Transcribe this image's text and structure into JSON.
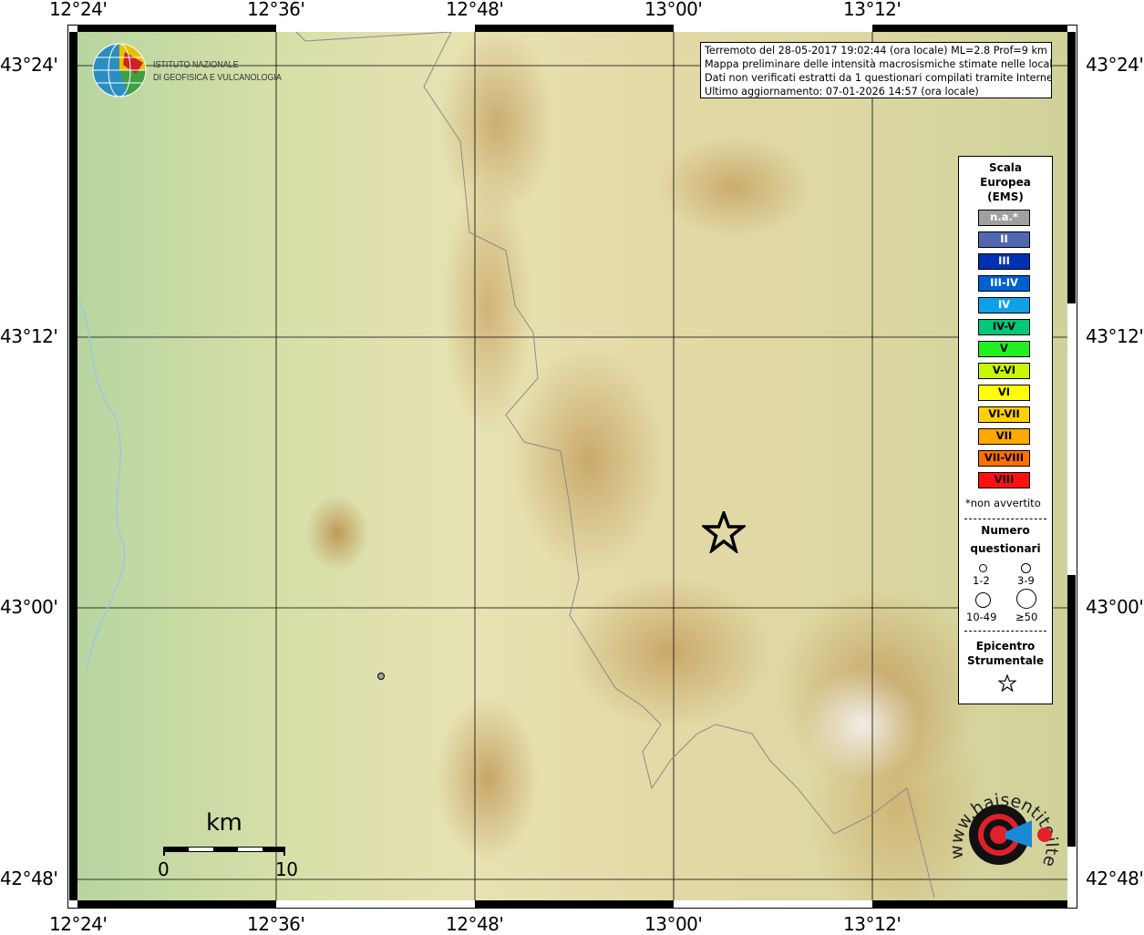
{
  "map": {
    "lon_labels": [
      "12°24'",
      "12°36'",
      "12°48'",
      "13°00'",
      "13°12'"
    ],
    "lat_labels": [
      "43°24'",
      "43°12'",
      "43°00'",
      "42°48'"
    ],
    "epicenter": {
      "lat": 43.04,
      "lon": 13.05,
      "icon": "star-icon"
    },
    "questionnaire_points": [
      {
        "lat": 42.92,
        "lon": 12.71,
        "count_class": "1-2"
      }
    ]
  },
  "logo": {
    "line1": "ISTITUTO NAZIONALE",
    "line2": "DI GEOFISICA E VULCANOLOGIA"
  },
  "info": {
    "line1": "Terremoto del 28-05-2017 19:02:44 (ora locale) ML=2.8 Prof=9 km",
    "line2": "Mappa preliminare delle intensità macrosismiche stimate nelle località",
    "line3": "Dati non verificati estratti da 1 questionari compilati tramite Internet.",
    "line4": "Ultimo aggiornamento: 07-01-2026 14:57 (ora locale)"
  },
  "legend": {
    "title1": "Scala",
    "title2": "Europea",
    "title3": "(EMS)",
    "scale": [
      {
        "label": "n.a.*",
        "color": "#a0a0a0",
        "text": "#ffffff"
      },
      {
        "label": "II",
        "color": "#5068b0",
        "text": "#ffffff"
      },
      {
        "label": "III",
        "color": "#0030b4",
        "text": "#ffffff"
      },
      {
        "label": "III-IV",
        "color": "#0060d0",
        "text": "#ffffff"
      },
      {
        "label": "IV",
        "color": "#10a0e8",
        "text": "#ffffff"
      },
      {
        "label": "IV-V",
        "color": "#00c878",
        "text": "#000000"
      },
      {
        "label": "V",
        "color": "#20f020",
        "text": "#000000"
      },
      {
        "label": "V-VI",
        "color": "#c8f800",
        "text": "#000000"
      },
      {
        "label": "VI",
        "color": "#ffff00",
        "text": "#000000"
      },
      {
        "label": "VI-VII",
        "color": "#ffd000",
        "text": "#000000"
      },
      {
        "label": "VII",
        "color": "#ffa800",
        "text": "#000000"
      },
      {
        "label": "VII-VIII",
        "color": "#ff7000",
        "text": "#000000"
      },
      {
        "label": "VIII",
        "color": "#ff1010",
        "text": "#000000"
      }
    ],
    "note": "*non avvertito",
    "count_title1": "Numero",
    "count_title2": "questionari",
    "counts": [
      "1-2",
      "3-9",
      "10-49",
      "≥50"
    ],
    "epi_title1": "Epicentro",
    "epi_title2": "Strumentale"
  },
  "scalebar": {
    "unit": "km",
    "min": "0",
    "max": "10"
  },
  "brand": {
    "text": "www.haisentitoilterremoto.it"
  }
}
